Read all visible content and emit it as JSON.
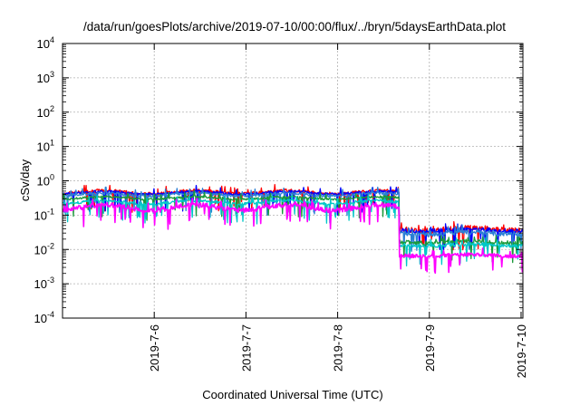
{
  "chart_data": {
    "type": "line",
    "title": "/data/run/goesPlots/archive/2019-07-10/00:00/flux/../bryn/5daysEarthData.plot",
    "xlabel": "Coordinated Universal Time (UTC)",
    "ylabel": "cSv/day",
    "yscale": "log",
    "ylim": [
      0.0001,
      10000
    ],
    "xlim_days_from_2019_7_5": [
      0,
      5.02
    ],
    "grid": true,
    "y_ticks": [
      {
        "base": "10",
        "exp": "-4",
        "value": 0.0001
      },
      {
        "base": "10",
        "exp": "-3",
        "value": 0.001
      },
      {
        "base": "10",
        "exp": "-2",
        "value": 0.01
      },
      {
        "base": "10",
        "exp": "-1",
        "value": 0.1
      },
      {
        "base": "10",
        "exp": "0",
        "value": 1
      },
      {
        "base": "10",
        "exp": "1",
        "value": 10
      },
      {
        "base": "10",
        "exp": "2",
        "value": 100
      },
      {
        "base": "10",
        "exp": "3",
        "value": 1000
      },
      {
        "base": "10",
        "exp": "4",
        "value": 10000
      }
    ],
    "x_ticks": [
      {
        "label": "2019-7-6",
        "day": 1
      },
      {
        "label": "2019-7-7",
        "day": 2
      },
      {
        "label": "2019-7-8",
        "day": 3
      },
      {
        "label": "2019-7-9",
        "day": 4
      },
      {
        "label": "2019-7-10",
        "day": 5
      }
    ],
    "step_day": 3.67,
    "series": [
      {
        "color": "#ff0000",
        "before": [
          0.35,
          0.6
        ],
        "after": [
          0.025,
          0.07
        ]
      },
      {
        "color": "#0000ff",
        "before": [
          0.35,
          0.55
        ],
        "after": [
          0.025,
          0.06
        ]
      },
      {
        "color": "#2a7fd4",
        "before": [
          0.3,
          0.5
        ],
        "after": [
          0.02,
          0.05
        ]
      },
      {
        "color": "#1a9a3a",
        "before": [
          0.25,
          0.38
        ],
        "after": [
          0.012,
          0.025
        ]
      },
      {
        "color": "#00c8c8",
        "before": [
          0.18,
          0.3
        ],
        "after": [
          0.01,
          0.02
        ]
      },
      {
        "color": "#ff00ff",
        "before": [
          0.1,
          0.25
        ],
        "after": [
          0.005,
          0.01
        ]
      }
    ]
  }
}
